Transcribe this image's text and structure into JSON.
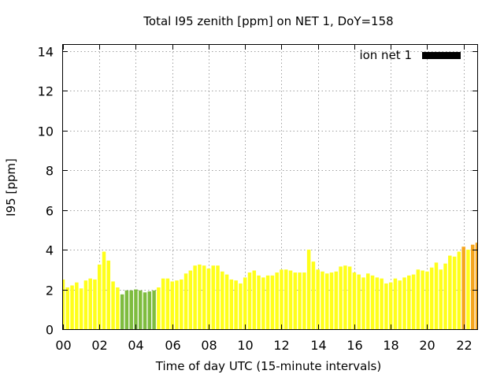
{
  "chart_data": {
    "type": "bar",
    "title": "Total I95 zenith [ppm] on NET 1, DoY=158",
    "xlabel": "Time of day UTC (15-minute intervals)",
    "ylabel": "I95 [ppm]",
    "legend": {
      "label": "ion net 1",
      "color": "#000000",
      "position": "top-right"
    },
    "grid": true,
    "xlim": [
      0,
      22.75
    ],
    "ylim": [
      0,
      14.3
    ],
    "xticks": [
      {
        "value": 0,
        "label": "00"
      },
      {
        "value": 2,
        "label": "02"
      },
      {
        "value": 4,
        "label": "04"
      },
      {
        "value": 6,
        "label": "06"
      },
      {
        "value": 8,
        "label": "08"
      },
      {
        "value": 10,
        "label": "10"
      },
      {
        "value": 12,
        "label": "12"
      },
      {
        "value": 14,
        "label": "14"
      },
      {
        "value": 16,
        "label": "16"
      },
      {
        "value": 18,
        "label": "18"
      },
      {
        "value": 20,
        "label": "20"
      },
      {
        "value": 22,
        "label": "22"
      }
    ],
    "yticks": [
      {
        "value": 0,
        "label": "0"
      },
      {
        "value": 2,
        "label": "2"
      },
      {
        "value": 4,
        "label": "4"
      },
      {
        "value": 6,
        "label": "6"
      },
      {
        "value": 8,
        "label": "8"
      },
      {
        "value": 10,
        "label": "10"
      },
      {
        "value": 12,
        "label": "12"
      },
      {
        "value": 14,
        "label": "14"
      }
    ],
    "interval_hours": 0.25,
    "x": [
      0,
      0.25,
      0.5,
      0.75,
      1,
      1.25,
      1.5,
      1.75,
      2,
      2.25,
      2.5,
      2.75,
      3,
      3.25,
      3.5,
      3.75,
      4,
      4.25,
      4.5,
      4.75,
      5,
      5.25,
      5.5,
      5.75,
      6,
      6.25,
      6.5,
      6.75,
      7,
      7.25,
      7.5,
      7.75,
      8,
      8.25,
      8.5,
      8.75,
      9,
      9.25,
      9.5,
      9.75,
      10,
      10.25,
      10.5,
      10.75,
      11,
      11.25,
      11.5,
      11.75,
      12,
      12.25,
      12.5,
      12.75,
      13,
      13.25,
      13.5,
      13.75,
      14,
      14.25,
      14.5,
      14.75,
      15,
      15.25,
      15.5,
      15.75,
      16,
      16.25,
      16.5,
      16.75,
      17,
      17.25,
      17.5,
      17.75,
      18,
      18.25,
      18.5,
      18.75,
      19,
      19.25,
      19.5,
      19.75,
      20,
      20.25,
      20.5,
      20.75,
      21,
      21.25,
      21.5,
      21.75,
      22,
      22.25,
      22.5,
      22.75
    ],
    "values": [
      2.5,
      2.1,
      2.2,
      2.35,
      2.05,
      2.45,
      2.55,
      2.5,
      3.25,
      3.9,
      3.45,
      2.4,
      2.1,
      1.75,
      1.95,
      1.95,
      2.0,
      1.95,
      1.85,
      1.9,
      1.95,
      2.1,
      2.55,
      2.55,
      2.4,
      2.45,
      2.5,
      2.8,
      2.95,
      3.2,
      3.25,
      3.2,
      3.05,
      3.2,
      3.2,
      2.9,
      2.75,
      2.5,
      2.45,
      2.3,
      2.6,
      2.85,
      2.95,
      2.7,
      2.6,
      2.7,
      2.7,
      2.85,
      3.0,
      3.0,
      2.95,
      2.85,
      2.85,
      2.85,
      4.0,
      3.4,
      3.0,
      2.9,
      2.8,
      2.85,
      2.9,
      3.15,
      3.2,
      3.15,
      2.85,
      2.75,
      2.6,
      2.8,
      2.7,
      2.6,
      2.55,
      2.3,
      2.35,
      2.55,
      2.45,
      2.6,
      2.7,
      2.75,
      3.0,
      2.95,
      2.9,
      3.1,
      3.35,
      3.0,
      3.3,
      3.7,
      3.65,
      3.9,
      4.15,
      4.0,
      4.25,
      4.35
    ],
    "bar_colors": {
      "green": "#7ebc3f",
      "yellow": "#ffff1a",
      "orange": "#f5a51d"
    },
    "color_thresholds": {
      "green_below": 2.05,
      "orange_from": 4.1
    }
  }
}
